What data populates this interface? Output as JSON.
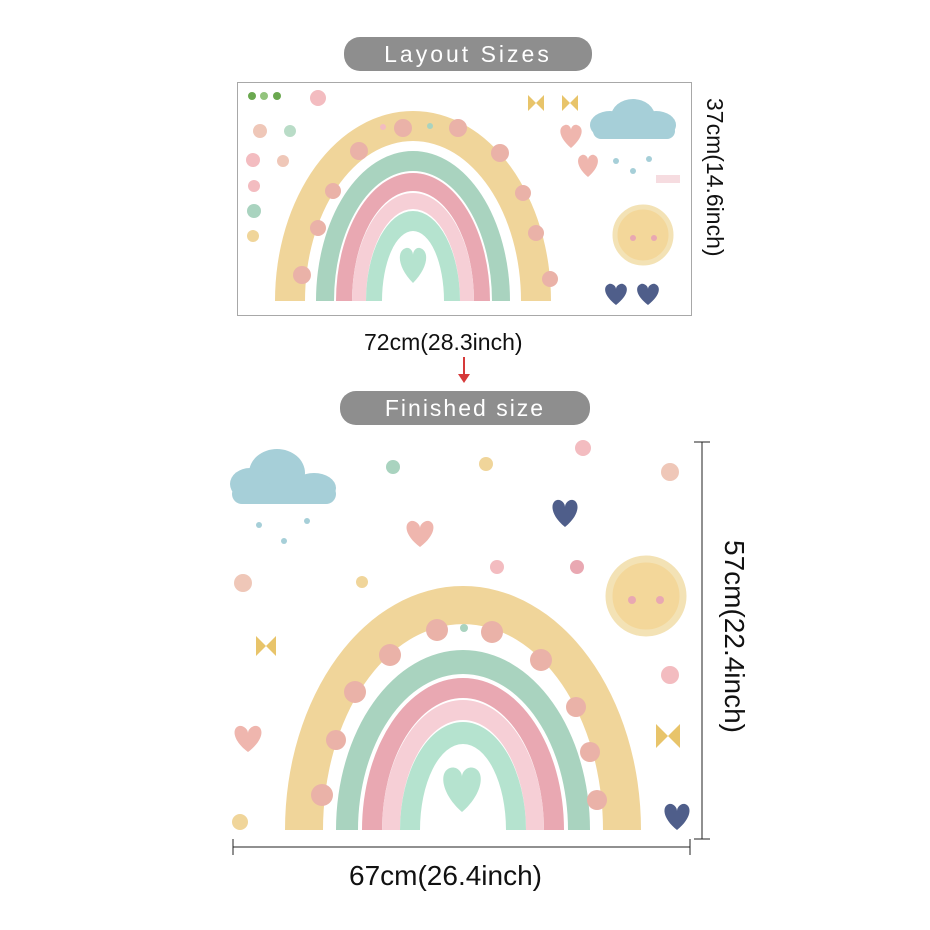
{
  "layout": {
    "title": "Layout Sizes",
    "width_label": "72cm(28.3inch)",
    "height_label": "37cm(14.6inch)",
    "arrow_icon": "arrow-down-icon"
  },
  "finished": {
    "title": "Finished size",
    "width_label": "67cm(26.4inch)",
    "height_label": "57cm(22.4inch)"
  },
  "colors": {
    "pill": "#8e8e8e",
    "rainbow_yellow": "#f0d59a",
    "rainbow_green": "#a9d3bf",
    "rainbow_pink": "#e9a8b2",
    "rainbow_lightpink": "#f6cfd6",
    "rainbow_mint": "#b5e3cf",
    "cloud": "#a6cfd8",
    "sun": "#f3d79a",
    "heart_navy": "#4f5e8a",
    "heart_pink": "#efb6ae",
    "arrow": "#d63a3a"
  }
}
